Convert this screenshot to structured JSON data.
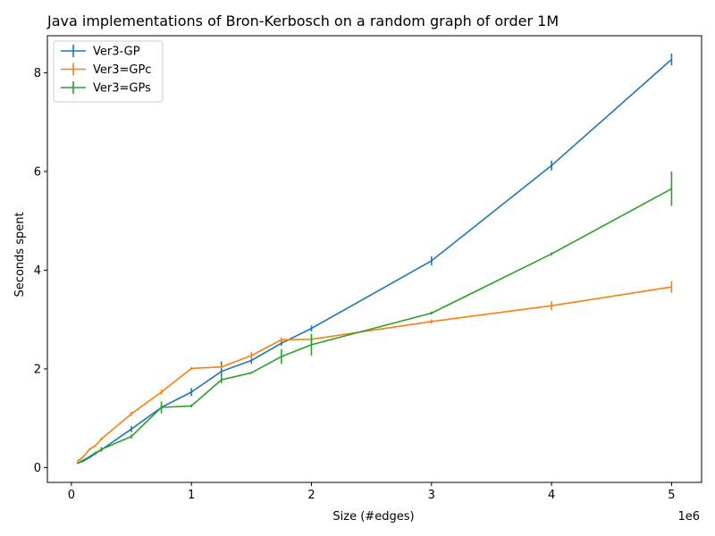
{
  "chart_data": {
    "type": "line",
    "title": "Java implementations of Bron-Kerbosch on a random graph of order 1M",
    "xlabel": "Size (#edges)",
    "ylabel": "Seconds spent",
    "x_offset_label": "1e6",
    "xlim": [
      -200000,
      5250000
    ],
    "ylim": [
      -0.3,
      8.75
    ],
    "x_ticks": [
      {
        "value": 0,
        "label": "0"
      },
      {
        "value": 1000000,
        "label": "1"
      },
      {
        "value": 2000000,
        "label": "2"
      },
      {
        "value": 3000000,
        "label": "3"
      },
      {
        "value": 4000000,
        "label": "4"
      },
      {
        "value": 5000000,
        "label": "5"
      }
    ],
    "y_ticks": [
      {
        "value": 0,
        "label": "0"
      },
      {
        "value": 2,
        "label": "2"
      },
      {
        "value": 4,
        "label": "4"
      },
      {
        "value": 6,
        "label": "6"
      },
      {
        "value": 8,
        "label": "8"
      }
    ],
    "grid": false,
    "legend_position": "top-left",
    "x": [
      50000,
      100000,
      150000,
      200000,
      250000,
      500000,
      750000,
      1000000,
      1250000,
      1500000,
      1750000,
      2000000,
      3000000,
      4000000,
      5000000
    ],
    "series": [
      {
        "name": "Ver3-GP",
        "color": "#1f77b4",
        "values": [
          0.09,
          0.15,
          0.22,
          0.3,
          0.36,
          0.78,
          1.22,
          1.53,
          1.95,
          2.17,
          2.52,
          2.82,
          4.19,
          6.12,
          8.27
        ],
        "errors": [
          0.01,
          0.01,
          0.01,
          0.02,
          0.03,
          0.06,
          0.05,
          0.08,
          0.2,
          0.07,
          0.05,
          0.06,
          0.09,
          0.1,
          0.12
        ]
      },
      {
        "name": "Ver3=GPc",
        "color": "#ff7f0e",
        "values": [
          0.13,
          0.22,
          0.37,
          0.44,
          0.58,
          1.09,
          1.53,
          2.01,
          2.04,
          2.27,
          2.59,
          2.6,
          2.96,
          3.28,
          3.66
        ],
        "errors": [
          0.01,
          0.01,
          0.02,
          0.02,
          0.03,
          0.04,
          0.05,
          0.03,
          0.03,
          0.07,
          0.05,
          0.06,
          0.04,
          0.09,
          0.12
        ]
      },
      {
        "name": "Ver3=GPs",
        "color": "#2ca02c",
        "values": [
          0.09,
          0.13,
          0.2,
          0.28,
          0.37,
          0.63,
          1.22,
          1.25,
          1.78,
          1.92,
          2.25,
          2.49,
          3.13,
          4.33,
          5.65
        ],
        "errors": [
          0.01,
          0.01,
          0.01,
          0.02,
          0.05,
          0.04,
          0.12,
          0.03,
          0.07,
          0.02,
          0.15,
          0.22,
          0.03,
          0.03,
          0.35
        ]
      }
    ]
  }
}
